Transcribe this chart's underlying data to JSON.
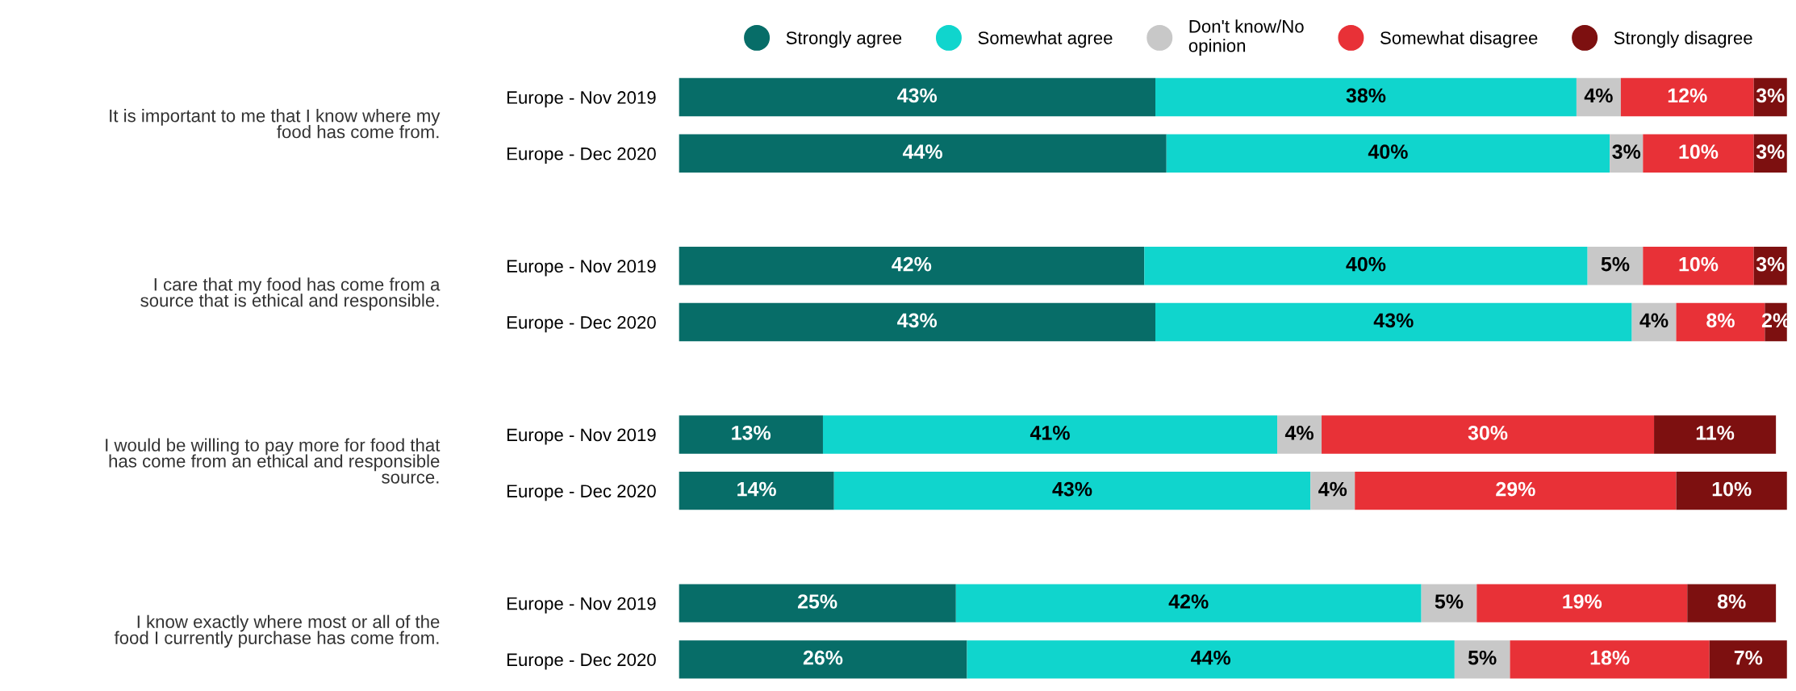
{
  "chart_data": {
    "type": "bar",
    "orientation": "horizontal",
    "stacked": true,
    "categories": [
      "Europe - Nov 2019",
      "Europe - Dec 2020",
      null,
      "Europe - Nov 2019",
      "Europe - Dec 2020",
      null,
      "Europe - Nov 2019",
      "Europe - Dec 2020",
      null,
      "Europe - Nov 2019",
      "Europe - Dec 2020"
    ],
    "xlim": [
      0,
      100
    ],
    "tick_labels": "y",
    "grid": false,
    "legend": "top right",
    "series": [
      {
        "name": "Strongly agree",
        "color": "#076d68",
        "values": [
          43,
          44,
          null,
          42,
          43,
          null,
          13,
          14,
          null,
          25,
          26
        ],
        "value_labels": [
          "43%",
          "44%",
          null,
          "42%",
          "43%",
          null,
          "13%",
          "14%",
          null,
          "25%",
          "26%"
        ]
      },
      {
        "name": "Somewhat agree",
        "color": "#10d5cd",
        "values": [
          38,
          40,
          null,
          40,
          43,
          null,
          41,
          43,
          null,
          42,
          44
        ],
        "value_labels": [
          "38%",
          "40%",
          null,
          "40%",
          "43%",
          null,
          "41%",
          "43%",
          null,
          "42%",
          "44%"
        ]
      },
      {
        "name": "Don't know/No\nopinion",
        "color": "#c8c8c8",
        "values": [
          4,
          3,
          null,
          5,
          4,
          null,
          4,
          4,
          null,
          5,
          5
        ],
        "value_labels": [
          "4%",
          "3%",
          null,
          "5%",
          "4%",
          null,
          "4%",
          "4%",
          null,
          "5%",
          "5%"
        ]
      },
      {
        "name": "Somewhat disagree",
        "color": "#e83137",
        "values": [
          12,
          10,
          null,
          10,
          8,
          null,
          30,
          29,
          null,
          19,
          18
        ],
        "value_labels": [
          "12%",
          "10%",
          null,
          "10%",
          "8%",
          null,
          "30%",
          "29%",
          null,
          "19%",
          "18%"
        ]
      },
      {
        "name": "Strongly disagree",
        "color": "#7d1010",
        "values": [
          3,
          3,
          null,
          3,
          2,
          null,
          11,
          10,
          null,
          8,
          7
        ],
        "value_labels": [
          "3%",
          "3%",
          null,
          "3%",
          "2%",
          null,
          "11%",
          "10%",
          null,
          "8%",
          "7%"
        ]
      }
    ],
    "annotations": [
      "It is important to me that I know where my\nfood has come from.",
      "I care that my food has come from a\nsource that is ethical and responsible.",
      "I would be willing to pay more for food that\nhas come from an ethical and responsible\nsource.",
      "I know exactly where most or all of the\nfood I currently purchase has come from."
    ]
  }
}
